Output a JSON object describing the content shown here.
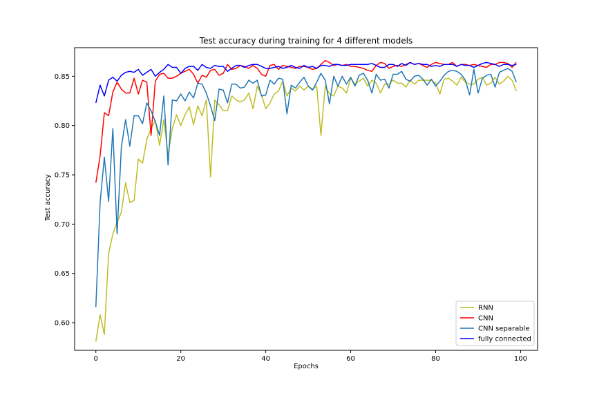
{
  "chart_data": {
    "type": "line",
    "title": "Test accuracy during training for 4 different models",
    "xlabel": "Epochs",
    "ylabel": "Test accuracy",
    "xlim": [
      -5,
      104
    ],
    "ylim": [
      0.572,
      0.879
    ],
    "xticks": [
      0,
      20,
      40,
      60,
      80,
      100
    ],
    "yticks": [
      0.6,
      0.65,
      0.7,
      0.75,
      0.8,
      0.85
    ],
    "ytick_labels": [
      "0.60",
      "0.65",
      "0.70",
      "0.75",
      "0.80",
      "0.85"
    ],
    "grid": false,
    "legend_position": "lower right",
    "series": [
      {
        "name": "RNN",
        "color": "#bcbd22",
        "values": [
          0.581,
          0.608,
          0.588,
          0.67,
          0.69,
          0.702,
          0.712,
          0.742,
          0.722,
          0.724,
          0.766,
          0.762,
          0.786,
          0.797,
          0.805,
          0.78,
          0.806,
          0.77,
          0.797,
          0.811,
          0.8,
          0.811,
          0.819,
          0.801,
          0.82,
          0.81,
          0.826,
          0.748,
          0.826,
          0.821,
          0.815,
          0.815,
          0.83,
          0.826,
          0.824,
          0.826,
          0.833,
          0.817,
          0.84,
          0.831,
          0.817,
          0.823,
          0.832,
          0.835,
          0.845,
          0.83,
          0.838,
          0.835,
          0.84,
          0.836,
          0.84,
          0.837,
          0.84,
          0.79,
          0.84,
          0.832,
          0.83,
          0.84,
          0.838,
          0.833,
          0.848,
          0.842,
          0.845,
          0.848,
          0.84,
          0.846,
          0.843,
          0.833,
          0.842,
          0.842,
          0.846,
          0.843,
          0.843,
          0.839,
          0.846,
          0.842,
          0.846,
          0.846,
          0.846,
          0.846,
          0.843,
          0.832,
          0.847,
          0.848,
          0.845,
          0.841,
          0.849,
          0.844,
          0.842,
          0.842,
          0.847,
          0.849,
          0.841,
          0.843,
          0.849,
          0.842,
          0.845,
          0.85,
          0.846,
          0.835
        ]
      },
      {
        "name": "CNN",
        "color": "#ff0000",
        "values": [
          0.742,
          0.769,
          0.813,
          0.81,
          0.834,
          0.844,
          0.837,
          0.833,
          0.833,
          0.848,
          0.832,
          0.846,
          0.844,
          0.79,
          0.845,
          0.852,
          0.853,
          0.848,
          0.848,
          0.85,
          0.853,
          0.855,
          0.857,
          0.852,
          0.843,
          0.851,
          0.849,
          0.856,
          0.857,
          0.851,
          0.853,
          0.862,
          0.857,
          0.858,
          0.861,
          0.86,
          0.858,
          0.861,
          0.858,
          0.852,
          0.85,
          0.861,
          0.862,
          0.857,
          0.861,
          0.86,
          0.859,
          0.858,
          0.86,
          0.86,
          0.859,
          0.857,
          0.858,
          0.862,
          0.866,
          0.864,
          0.861,
          0.862,
          0.861,
          0.862,
          0.86,
          0.86,
          0.859,
          0.858,
          0.856,
          0.855,
          0.861,
          0.864,
          0.863,
          0.858,
          0.86,
          0.861,
          0.86,
          0.862,
          0.864,
          0.862,
          0.863,
          0.861,
          0.859,
          0.862,
          0.864,
          0.863,
          0.862,
          0.862,
          0.864,
          0.86,
          0.862,
          0.862,
          0.861,
          0.862,
          0.861,
          0.86,
          0.859,
          0.862,
          0.862,
          0.864,
          0.864,
          0.863,
          0.859,
          0.864
        ]
      },
      {
        "name": "CNN separable",
        "color": "#1f77b4",
        "values": [
          0.616,
          0.722,
          0.768,
          0.723,
          0.797,
          0.69,
          0.778,
          0.806,
          0.779,
          0.81,
          0.81,
          0.802,
          0.823,
          0.815,
          0.804,
          0.79,
          0.83,
          0.76,
          0.826,
          0.825,
          0.832,
          0.825,
          0.834,
          0.828,
          0.843,
          0.842,
          0.833,
          0.82,
          0.805,
          0.837,
          0.836,
          0.823,
          0.842,
          0.842,
          0.838,
          0.839,
          0.846,
          0.843,
          0.846,
          0.83,
          0.831,
          0.846,
          0.842,
          0.848,
          0.847,
          0.812,
          0.841,
          0.838,
          0.844,
          0.849,
          0.84,
          0.836,
          0.844,
          0.853,
          0.846,
          0.822,
          0.85,
          0.84,
          0.85,
          0.842,
          0.849,
          0.84,
          0.851,
          0.853,
          0.846,
          0.833,
          0.852,
          0.846,
          0.847,
          0.838,
          0.852,
          0.852,
          0.855,
          0.847,
          0.845,
          0.85,
          0.851,
          0.847,
          0.841,
          0.847,
          0.84,
          0.845,
          0.851,
          0.855,
          0.856,
          0.855,
          0.852,
          0.846,
          0.831,
          0.857,
          0.833,
          0.848,
          0.851,
          0.852,
          0.839,
          0.854,
          0.856,
          0.858,
          0.855,
          0.844
        ]
      },
      {
        "name": "fully connected",
        "color": "#0000ff",
        "values": [
          0.823,
          0.841,
          0.83,
          0.846,
          0.849,
          0.845,
          0.851,
          0.854,
          0.855,
          0.854,
          0.857,
          0.851,
          0.854,
          0.857,
          0.85,
          0.854,
          0.857,
          0.862,
          0.859,
          0.859,
          0.853,
          0.858,
          0.86,
          0.86,
          0.856,
          0.862,
          0.859,
          0.858,
          0.861,
          0.86,
          0.86,
          0.855,
          0.858,
          0.861,
          0.861,
          0.859,
          0.861,
          0.862,
          0.862,
          0.86,
          0.858,
          0.858,
          0.859,
          0.86,
          0.858,
          0.859,
          0.861,
          0.859,
          0.858,
          0.861,
          0.859,
          0.86,
          0.858,
          0.861,
          0.861,
          0.86,
          0.862,
          0.862,
          0.861,
          0.861,
          0.862,
          0.862,
          0.862,
          0.862,
          0.862,
          0.863,
          0.861,
          0.859,
          0.859,
          0.862,
          0.862,
          0.86,
          0.863,
          0.861,
          0.864,
          0.862,
          0.863,
          0.862,
          0.862,
          0.86,
          0.861,
          0.86,
          0.862,
          0.862,
          0.862,
          0.86,
          0.862,
          0.861,
          0.861,
          0.859,
          0.861,
          0.863,
          0.864,
          0.863,
          0.862,
          0.86,
          0.862,
          0.862,
          0.861,
          0.862
        ]
      }
    ]
  }
}
